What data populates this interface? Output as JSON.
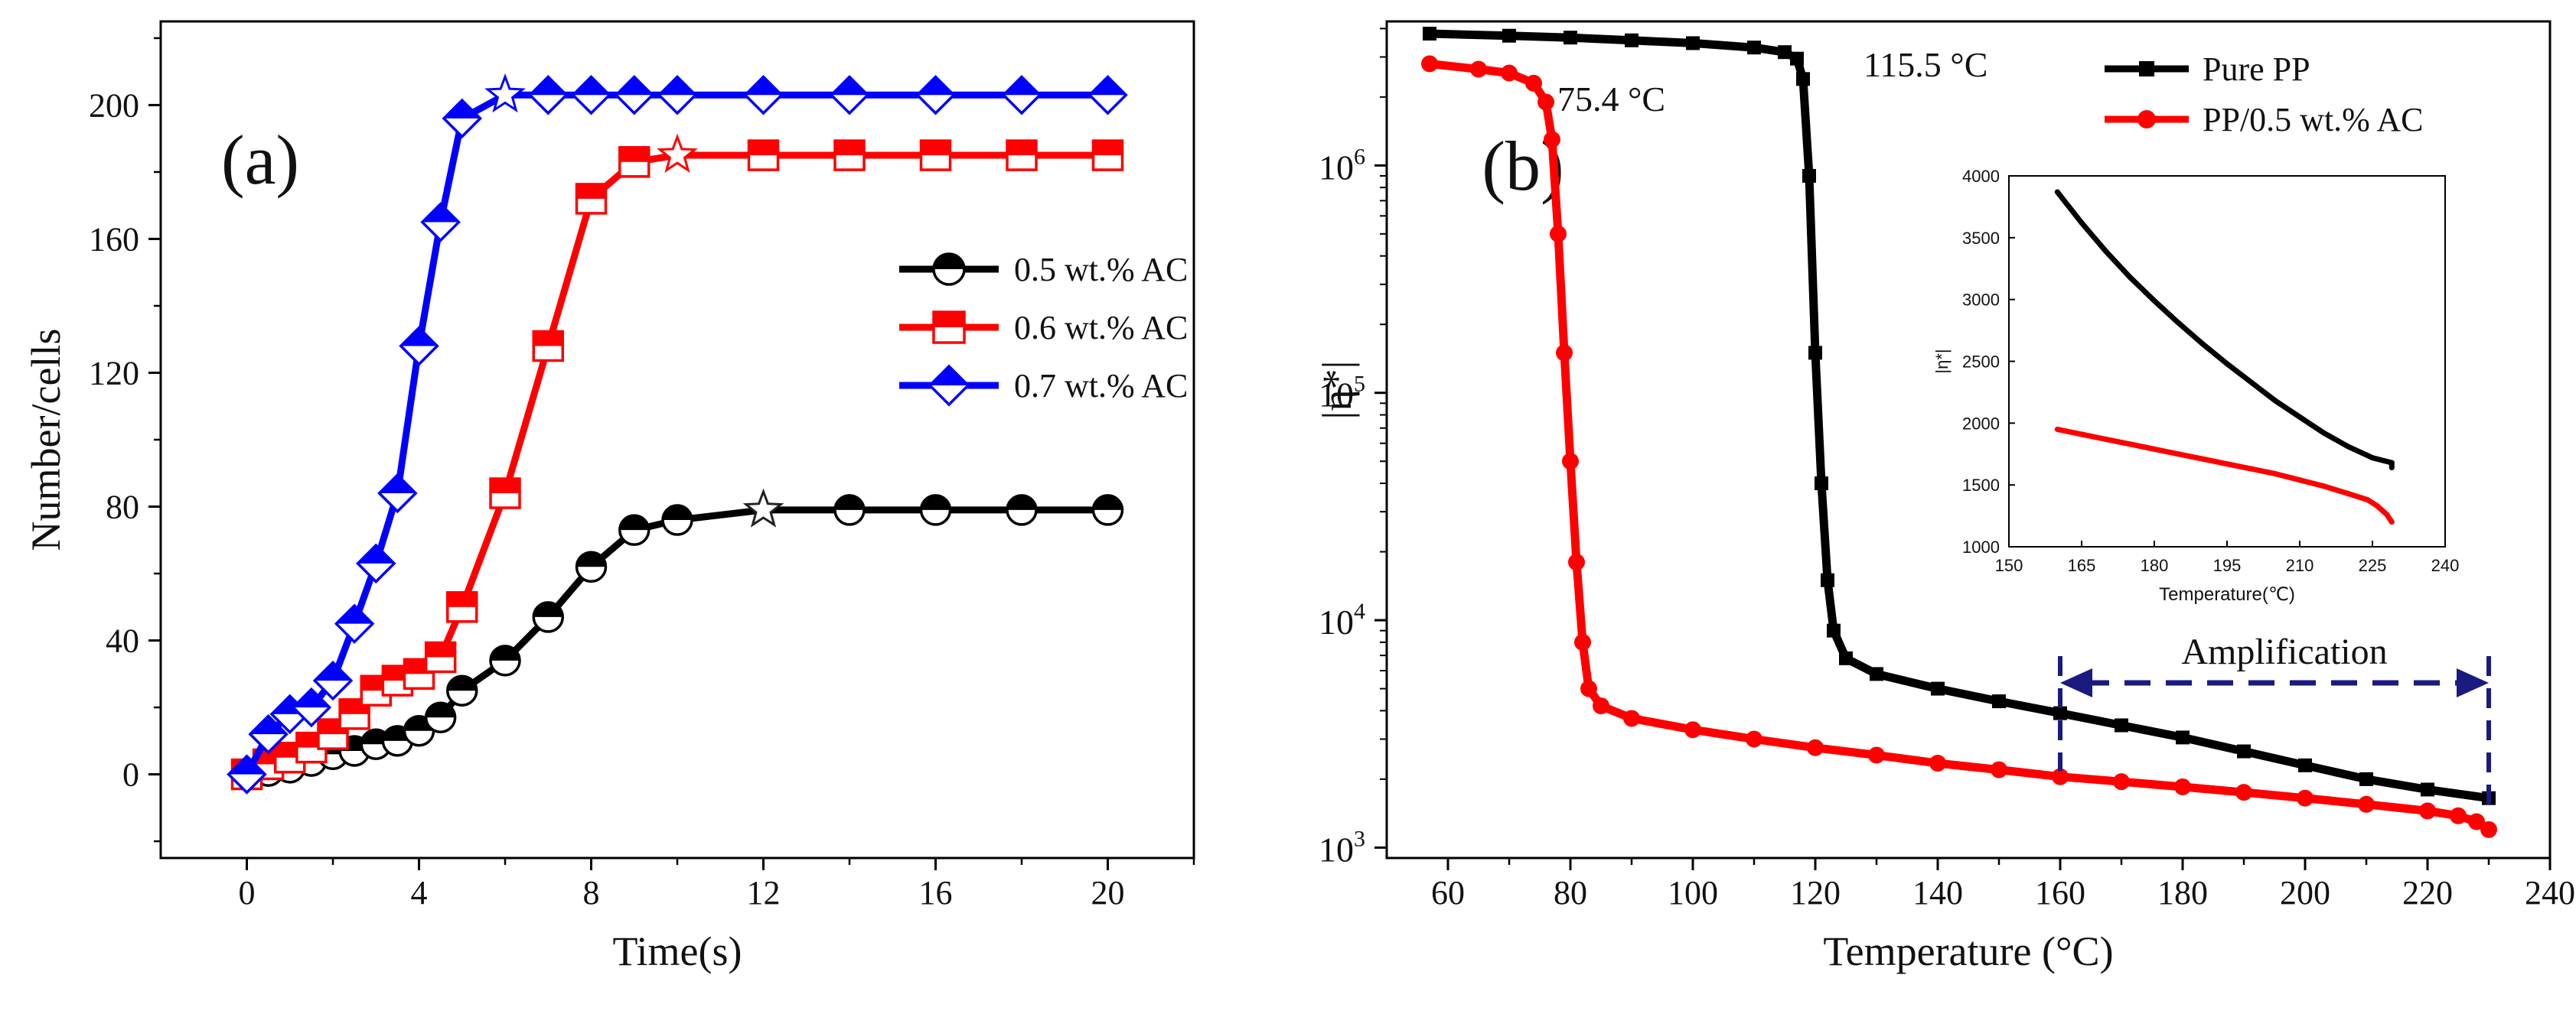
{
  "chart_data": [
    {
      "id": "a",
      "type": "line",
      "panel_label": "(a)",
      "xlabel": "Time(s)",
      "ylabel": "Number/cells",
      "xlim": [
        -2,
        22
      ],
      "ylim": [
        -25,
        225
      ],
      "xticks": [
        0,
        4,
        8,
        12,
        16,
        20
      ],
      "yticks": [
        0,
        40,
        80,
        120,
        160,
        200
      ],
      "grid": false,
      "legend_position": "center-right",
      "series": [
        {
          "name": "0.5 wt.% AC",
          "color": "#000000",
          "marker": "circle",
          "x": [
            0,
            0.5,
            1,
            1.5,
            2,
            2.5,
            3,
            3.5,
            4,
            4.5,
            5,
            6,
            7,
            8,
            9,
            10,
            12,
            14,
            16,
            18,
            20
          ],
          "y": [
            0,
            1,
            2,
            4,
            6,
            7,
            9,
            10,
            13,
            17,
            25,
            34,
            47,
            62,
            73,
            76,
            79,
            79,
            79,
            79,
            79
          ],
          "star_at": [
            12,
            79
          ]
        },
        {
          "name": "0.6 wt.% AC",
          "color": "#ff0000",
          "marker": "square",
          "x": [
            0,
            0.5,
            1,
            1.5,
            2,
            2.5,
            3,
            3.5,
            4,
            4.5,
            5,
            6,
            7,
            8,
            9,
            10,
            12,
            14,
            16,
            18,
            20
          ],
          "y": [
            0,
            3,
            5,
            8,
            12,
            18,
            25,
            28,
            30,
            35,
            50,
            84,
            128,
            172,
            183,
            185,
            185,
            185,
            185,
            185,
            185
          ],
          "star_at": [
            10,
            185
          ]
        },
        {
          "name": "0.7 wt.% AC",
          "color": "#0000ff",
          "marker": "diamond",
          "x": [
            0,
            0.5,
            1,
            1.5,
            2,
            2.5,
            3,
            3.5,
            4,
            4.5,
            5,
            6,
            7,
            8,
            9,
            10,
            12,
            14,
            16,
            18,
            20
          ],
          "y": [
            0,
            12,
            18,
            20,
            28,
            45,
            63,
            84,
            128,
            165,
            196,
            203,
            203,
            203,
            203,
            203,
            203,
            203,
            203,
            203,
            203
          ],
          "star_at": [
            6,
            203
          ]
        }
      ]
    },
    {
      "id": "b",
      "type": "line",
      "panel_label": "(b)",
      "xlabel": "Temperature (°C)",
      "ylabel": "|η*|",
      "xlim": [
        50,
        240
      ],
      "ylim": [
        900,
        4300000
      ],
      "yscale": "log",
      "xticks": [
        60,
        80,
        100,
        120,
        140,
        160,
        180,
        200,
        220,
        240
      ],
      "ytick_values": [
        1000,
        10000,
        100000,
        1000000
      ],
      "ytick_bases": [
        "10",
        "10",
        "10",
        "10"
      ],
      "ytick_exps": [
        "3",
        "4",
        "5",
        "6"
      ],
      "grid": false,
      "legend_position": "top-right",
      "annotations": {
        "pp_transition": "115.5 °C",
        "ac_transition": "75.4 °C",
        "amplification": "Amplification",
        "amplification_range": [
          160,
          230
        ],
        "amplification_value": 3900
      },
      "series": [
        {
          "name": "Pure PP",
          "color": "#000000",
          "marker": "square",
          "x": [
            57,
            70,
            80,
            90,
            100,
            110,
            115,
            117,
            118,
            119,
            120,
            121,
            122,
            123,
            125,
            130,
            140,
            150,
            160,
            170,
            180,
            190,
            200,
            210,
            220,
            230
          ],
          "y": [
            3800000,
            3720000,
            3650000,
            3550000,
            3450000,
            3300000,
            3150000,
            2950000,
            2400000,
            900000,
            150000,
            40000,
            15000,
            9000,
            6800,
            5800,
            5000,
            4400,
            3900,
            3450,
            3050,
            2650,
            2300,
            2000,
            1800,
            1650
          ]
        },
        {
          "name": "PP/0.5 wt.% AC",
          "color": "#ff0000",
          "marker": "circle",
          "x": [
            57,
            65,
            70,
            74,
            76,
            77,
            78,
            79,
            80,
            81,
            82,
            83,
            85,
            90,
            100,
            110,
            120,
            130,
            140,
            150,
            160,
            170,
            180,
            190,
            200,
            210,
            220,
            225,
            228,
            230
          ],
          "y": [
            2800000,
            2650000,
            2550000,
            2300000,
            1900000,
            1300000,
            500000,
            150000,
            50000,
            18000,
            8000,
            5000,
            4200,
            3700,
            3300,
            3000,
            2750,
            2550,
            2350,
            2200,
            2050,
            1950,
            1850,
            1750,
            1650,
            1550,
            1450,
            1380,
            1300,
            1200
          ]
        }
      ]
    }
  ],
  "inset": {
    "xlabel": "Temperature(℃)",
    "ylabel": "|η*|",
    "xlim": [
      150,
      240
    ],
    "ylim": [
      1000,
      4000
    ],
    "xticks": [
      150,
      165,
      180,
      195,
      210,
      225,
      240
    ],
    "yticks": [
      1000,
      1500,
      2000,
      2500,
      3000,
      3500,
      4000
    ],
    "series": [
      {
        "name": "Pure PP",
        "color": "#000000",
        "x": [
          160,
          165,
          170,
          175,
          180,
          185,
          190,
          195,
          200,
          205,
          210,
          215,
          220,
          225,
          229,
          229
        ],
        "y": [
          3870,
          3620,
          3390,
          3180,
          2990,
          2810,
          2640,
          2480,
          2330,
          2180,
          2050,
          1920,
          1810,
          1720,
          1680,
          1640
        ]
      },
      {
        "name": "PP/0.5 wt.% AC",
        "color": "#ff0000",
        "x": [
          160,
          165,
          170,
          175,
          180,
          185,
          190,
          195,
          200,
          205,
          210,
          215,
          220,
          224,
          226,
          228,
          229
        ],
        "y": [
          1950,
          1910,
          1870,
          1830,
          1790,
          1750,
          1710,
          1670,
          1630,
          1590,
          1540,
          1490,
          1430,
          1380,
          1330,
          1260,
          1200
        ]
      }
    ]
  }
}
